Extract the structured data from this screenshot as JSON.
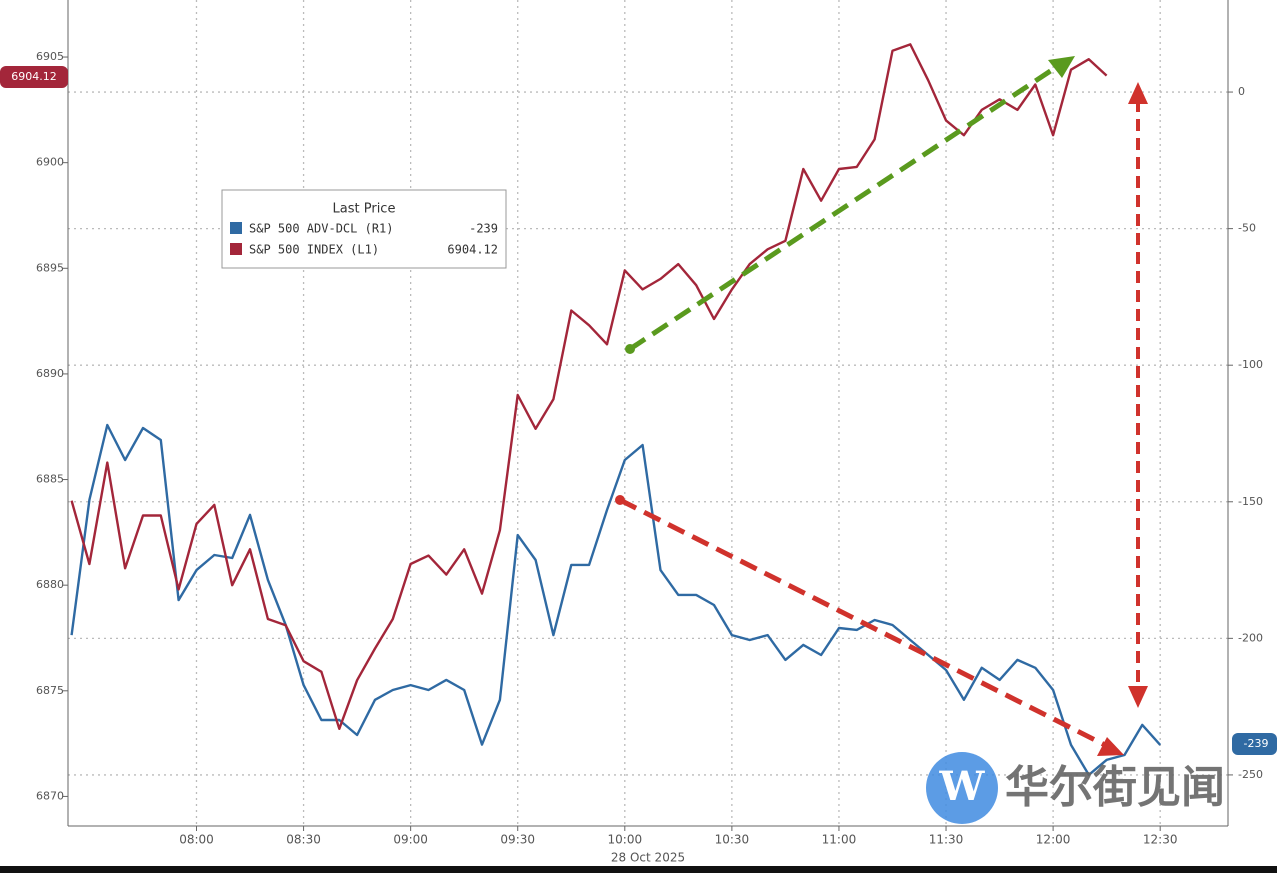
{
  "chart_data": {
    "type": "line",
    "legend": {
      "title": "Last Price"
    },
    "xlabel": "28 Oct 2025",
    "watermark": "华尔街见闻",
    "x": [
      "07:25",
      "07:30",
      "07:35",
      "07:40",
      "07:45",
      "07:50",
      "07:55",
      "08:00",
      "08:05",
      "08:10",
      "08:15",
      "08:20",
      "08:25",
      "08:30",
      "08:35",
      "08:40",
      "08:45",
      "08:50",
      "08:55",
      "09:00",
      "09:05",
      "09:10",
      "09:15",
      "09:20",
      "09:25",
      "09:30",
      "09:35",
      "09:40",
      "09:45",
      "09:50",
      "09:55",
      "10:00",
      "10:05",
      "10:10",
      "10:15",
      "10:20",
      "10:25",
      "10:30",
      "10:35",
      "10:40",
      "10:45",
      "10:50",
      "10:55",
      "11:00",
      "11:05",
      "11:10",
      "11:15",
      "11:20",
      "11:25",
      "11:30",
      "11:35",
      "11:40",
      "11:45",
      "11:50",
      "11:55",
      "12:00",
      "12:05",
      "12:10",
      "12:15",
      "12:20",
      "12:25",
      "12:30"
    ],
    "series": [
      {
        "name": "S&P 500 ADV-DCL (R1)",
        "last_label": "-239",
        "color": "#2f6aa3",
        "axis": "y2",
        "values": [
          -198.8,
          -149.3,
          -121.9,
          -134.7,
          -123.0,
          -127.4,
          -186.0,
          -175.0,
          -169.5,
          -170.6,
          -154.8,
          -178.6,
          -195.1,
          -217.1,
          -229.9,
          -229.9,
          -235.4,
          -222.5,
          -218.9,
          -217.1,
          -218.9,
          -215.2,
          -218.9,
          -238.9,
          -222.5,
          -162.2,
          -171.3,
          -198.8,
          -173.1,
          -173.1,
          -153.0,
          -134.7,
          -129.2,
          -175.0,
          -184.1,
          -184.1,
          -187.8,
          -198.8,
          -200.6,
          -198.8,
          -207.9,
          -202.4,
          -206.1,
          -196.2,
          -196.9,
          -193.3,
          -195.1,
          -200.6,
          -206.1,
          -211.6,
          -222.5,
          -210.8,
          -215.2,
          -207.9,
          -210.8,
          -218.9,
          -239.0,
          -250.0,
          -244.5,
          -242.7,
          -231.7,
          -239
        ]
      },
      {
        "name": "S&P 500 INDEX (L1)",
        "last_label": "6904.12",
        "color": "#a3263a",
        "values": [
          6884.0,
          6881.0,
          6885.8,
          6880.8,
          6883.3,
          6883.3,
          6879.8,
          6882.9,
          6883.8,
          6880.0,
          6881.7,
          6878.4,
          6878.1,
          6876.4,
          6875.9,
          6873.2,
          6875.5,
          6877.0,
          6878.4,
          6881.0,
          6881.4,
          6880.5,
          6881.7,
          6879.6,
          6882.6,
          6889.0,
          6887.4,
          6888.8,
          6893.0,
          6892.3,
          6891.4,
          6894.9,
          6894.0,
          6894.5,
          6895.2,
          6894.2,
          6892.6,
          6894.0,
          6895.2,
          6895.9,
          6896.3,
          6899.7,
          6898.2,
          6899.7,
          6899.8,
          6901.1,
          6905.3,
          6905.6,
          6903.9,
          6902.0,
          6901.3,
          6902.5,
          6903.0,
          6902.5,
          6903.7,
          6901.3,
          6904.4,
          6904.9,
          6904.12,
          null,
          null,
          null
        ]
      }
    ],
    "xlim": [
      "07:24",
      "12:49"
    ],
    "xticks": [
      "08:00",
      "08:30",
      "09:00",
      "09:30",
      "10:00",
      "10:30",
      "11:00",
      "11:30",
      "12:00",
      "12:30"
    ],
    "ylim": [
      6868.6,
      6907.7
    ],
    "yticks": [
      6870,
      6875,
      6880,
      6885,
      6890,
      6895,
      6900,
      6905
    ],
    "y2lim": [
      -268.7,
      33.7
    ],
    "y2ticks": [
      -250,
      -200,
      -150,
      -100,
      -50,
      0
    ],
    "grid": true
  }
}
